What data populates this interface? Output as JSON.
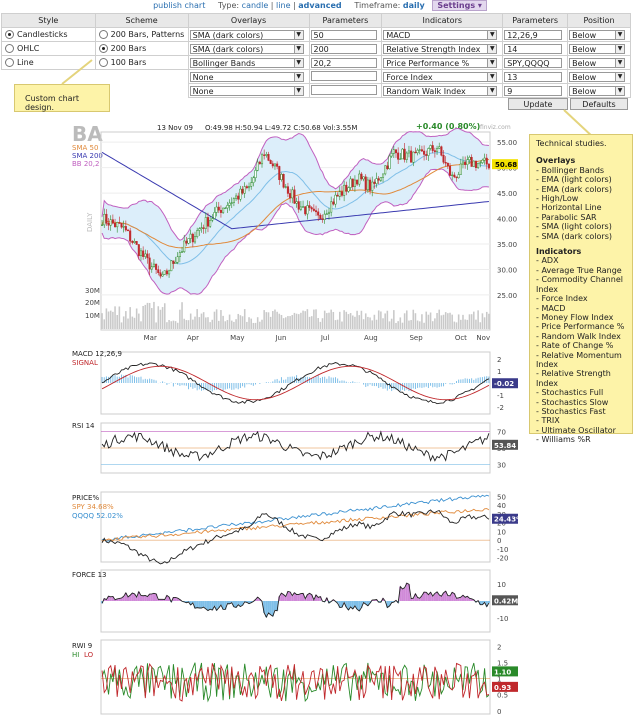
{
  "topnav": {
    "publish": "publish chart",
    "type_label": "Type:",
    "type_candle": "candle",
    "type_line": "line",
    "type_advanced": "advanced",
    "timeframe_label": "Timeframe:",
    "timeframe_value": "daily",
    "settings": "Settings"
  },
  "config": {
    "headers": [
      "Style",
      "Scheme",
      "Overlays",
      "Parameters",
      "Indicators",
      "Parameters",
      "Position"
    ],
    "styles": [
      "Candlesticks",
      "OHLC",
      "Line"
    ],
    "schemes": [
      "200 Bars, Patterns",
      "200 Bars",
      "100 Bars"
    ],
    "overlays": [
      {
        "name": "SMA (dark colors)",
        "param": "50"
      },
      {
        "name": "SMA (dark colors)",
        "param": "200"
      },
      {
        "name": "Bollinger Bands",
        "param": "20,2"
      },
      {
        "name": "None",
        "param": ""
      },
      {
        "name": "None",
        "param": ""
      }
    ],
    "indicators": [
      {
        "name": "MACD",
        "param": "12,26,9",
        "pos": "Below"
      },
      {
        "name": "Relative Strength Index",
        "param": "14",
        "pos": "Below"
      },
      {
        "name": "Price Performance %",
        "param": "SPY,QQQQ",
        "pos": "Below"
      },
      {
        "name": "Force Index",
        "param": "13",
        "pos": "Below"
      },
      {
        "name": "Random Walk Index",
        "param": "9",
        "pos": "Below"
      }
    ],
    "update": "Update",
    "defaults": "Defaults"
  },
  "notes": {
    "custom": "Custom chart design.",
    "tech_title": "Technical studies.",
    "overlays_title": "Overlays",
    "overlays": [
      "Bollinger Bands",
      "EMA (light colors)",
      "EMA (dark colors)",
      "High/Low",
      "Horizontal Line",
      "Parabolic SAR",
      "SMA (light colors)",
      "SMA (dark colors)"
    ],
    "indicators_title": "Indicators",
    "indicators": [
      "ADX",
      "Average True Range",
      "Commodity Channel Index",
      "Force Index",
      "MACD",
      "Money Flow Index",
      "Price Performance %",
      "Random Walk Index",
      "Rate of Change %",
      "Relative Momentum Index",
      "Relative Strength Index",
      "Stochastics Full",
      "Stochastics Slow",
      "Stochastics Fast",
      "TRIX",
      "Ultimate Oscillator",
      "Williams %R"
    ]
  },
  "chart": {
    "ticker": "BA",
    "date": "13 Nov 09",
    "ohlc": "O:49.98  H:50.94  L:49.72  C:50.68  Vol:3.55M",
    "change": "+0.40 (0.80%)",
    "brand": "finviz.com",
    "daily": "DAILY",
    "sma50": "SMA 50",
    "sma200": "SMA 200",
    "bb": "BB 20,2",
    "last": "50.68",
    "vol_labels": [
      "30M",
      "20M",
      "10M"
    ],
    "months": [
      "Mar",
      "Apr",
      "May",
      "Jun",
      "Jul",
      "Aug",
      "Sep",
      "Oct",
      "Nov"
    ],
    "price_ticks": [
      "55.00",
      "50.00",
      "45.00",
      "40.00",
      "35.00",
      "30.00",
      "25.00"
    ],
    "colors": {
      "up": "#2a8a2a",
      "down": "#c0282c",
      "sma50": "#e08a3c",
      "sma200": "#3a3ab0",
      "bb": "#c060c0",
      "bbfill": "#9fd0ef"
    }
  },
  "panels": {
    "macd": {
      "title": "MACD 12,26,9",
      "signal": "SIGNAL",
      "last": "-0.02",
      "ticks": [
        "2",
        "1",
        "0",
        "-1",
        "-2"
      ]
    },
    "rsi": {
      "title": "RSI 14",
      "last": "53.84",
      "ticks": [
        "70",
        "50",
        "30"
      ]
    },
    "price": {
      "title": "PRICE%",
      "spy": "SPY 34.68%",
      "qqqq": "QQQQ 52.02%",
      "last": "24.43%",
      "ticks": [
        "50",
        "40",
        "30",
        "20",
        "10",
        "0",
        "-10",
        "-20"
      ]
    },
    "force": {
      "title": "FORCE 13",
      "last": "0.42M",
      "ticks": [
        "10",
        "0",
        "-10"
      ]
    },
    "rwi": {
      "title": "RWI 9",
      "hi": "HI",
      "lo": "LO",
      "last_hi": "1.10",
      "last_lo": "0.93",
      "ticks": [
        "2",
        "1.5",
        "1",
        "0.5",
        "0"
      ]
    }
  }
}
